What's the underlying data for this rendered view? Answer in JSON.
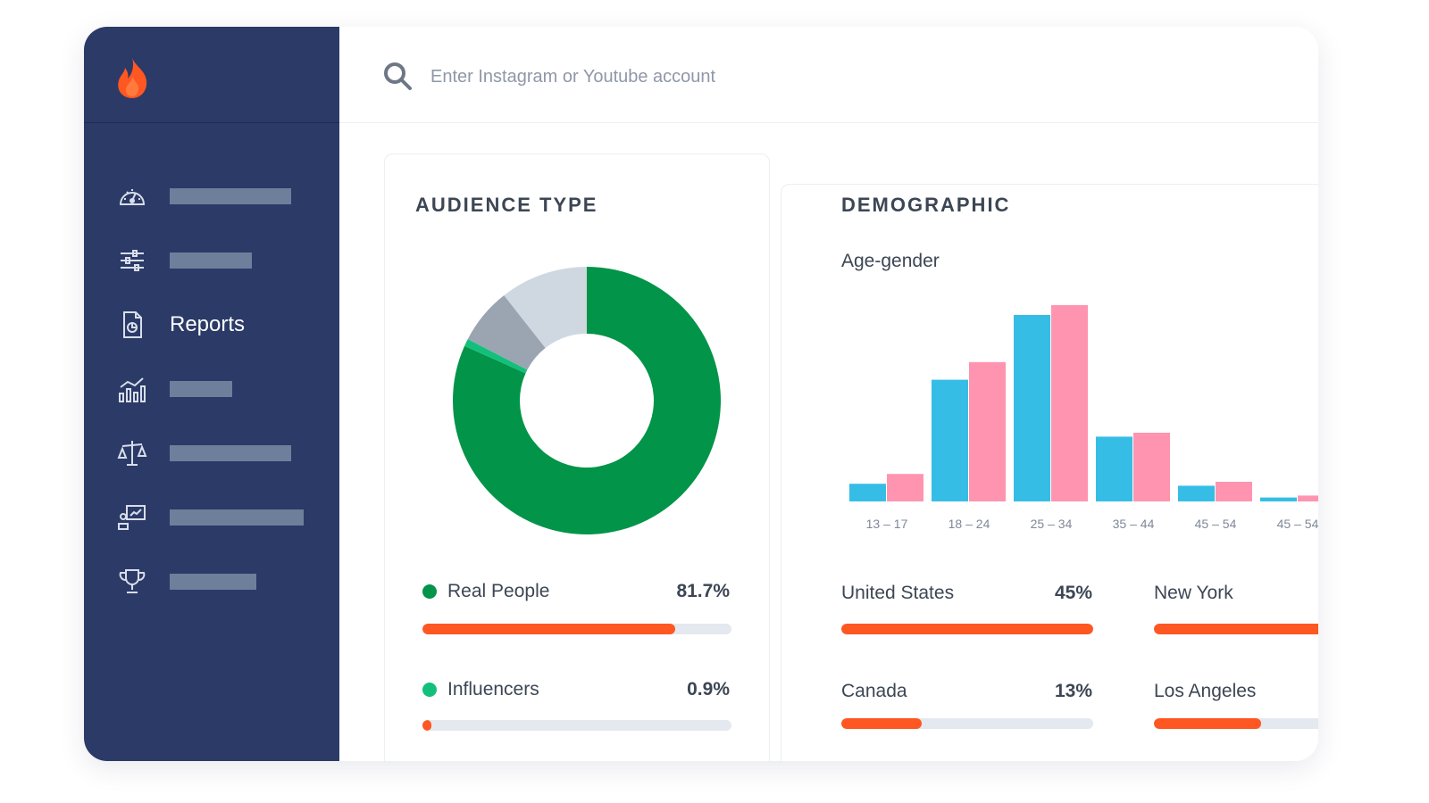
{
  "search": {
    "placeholder": "Enter Instagram or Youtube account"
  },
  "sidebar": {
    "items": [
      {
        "icon": "gauge-icon",
        "label": ""
      },
      {
        "icon": "sliders-icon",
        "label": ""
      },
      {
        "icon": "report-icon",
        "label": "Reports"
      },
      {
        "icon": "chart-icon",
        "label": ""
      },
      {
        "icon": "scale-icon",
        "label": ""
      },
      {
        "icon": "presentation-icon",
        "label": ""
      },
      {
        "icon": "trophy-icon",
        "label": ""
      }
    ]
  },
  "audience": {
    "title": "AUDIENCE TYPE",
    "rows": [
      {
        "label": "Real People",
        "value": "81.7%",
        "fraction": 0.817,
        "color": "#029448"
      },
      {
        "label": "Influencers",
        "value": "0.9%",
        "fraction": 0.009,
        "color": "#13c07b"
      }
    ]
  },
  "demographic": {
    "title": "DEMOGRAPHIC",
    "subtitle": "Age-gender",
    "countries": [
      {
        "label": "United States",
        "value": "45%",
        "fraction": 1.0
      },
      {
        "label": "Canada",
        "value": "13%",
        "fraction": 0.32
      }
    ],
    "cities": [
      {
        "label": "New York",
        "fraction": 1.0
      },
      {
        "label": "Los Angeles",
        "fraction": 0.5
      }
    ]
  },
  "chart_data": [
    {
      "type": "pie",
      "donut": true,
      "slices": [
        {
          "label": "Real People",
          "value": 81.7,
          "color": "#029448"
        },
        {
          "label": "Influencers",
          "value": 0.9,
          "color": "#13c07b"
        },
        {
          "label": "",
          "value": 6.8,
          "color": "#9aa5b1"
        },
        {
          "label": "",
          "value": 10.6,
          "color": "#cfd8e0"
        }
      ]
    },
    {
      "type": "bar",
      "categories": [
        "13 – 17",
        "18 – 24",
        "25 – 34",
        "35 – 44",
        "45 – 54",
        "45 – 54"
      ],
      "series": [
        {
          "values": [
            9,
            62,
            95,
            33,
            8,
            2
          ],
          "color": "#36bde6"
        },
        {
          "values": [
            14,
            71,
            100,
            35,
            10,
            3
          ],
          "color": "#ff94b0"
        }
      ],
      "ylim": [
        0,
        100
      ],
      "grid": false
    }
  ]
}
